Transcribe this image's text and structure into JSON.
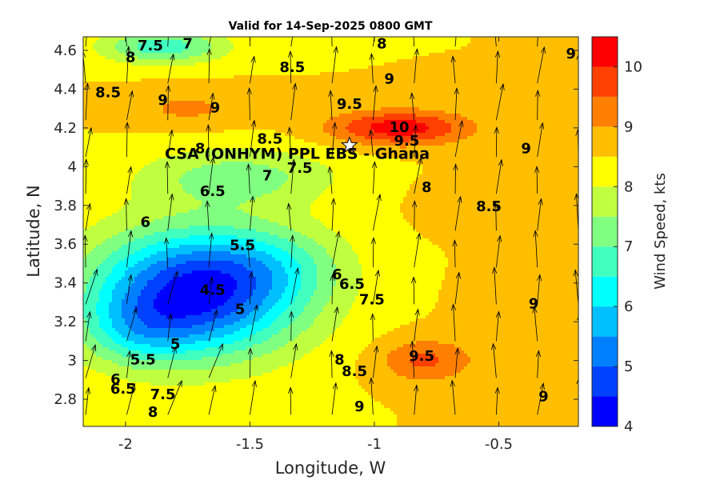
{
  "chart_data": {
    "type": "heatmap",
    "subtype": "filled-contour-with-wind-vectors",
    "title": "Valid for 14-Sep-2025 0800 GMT",
    "xlabel": "Longitude, W",
    "ylabel": "Latitude, N",
    "xlim": [
      -2.17,
      -0.18
    ],
    "ylim": [
      2.66,
      4.67
    ],
    "x_ticks": [
      -2,
      -1.5,
      -1,
      -0.5
    ],
    "x_tick_labels": [
      "-2",
      "-1.5",
      "-1",
      "-0.5"
    ],
    "y_ticks": [
      2.8,
      3,
      3.2,
      3.4,
      3.6,
      3.8,
      4,
      4.2,
      4.4,
      4.6
    ],
    "y_tick_labels": [
      "2.8",
      "3",
      "3.2",
      "3.4",
      "3.6",
      "3.8",
      "4",
      "4.2",
      "4.4",
      "4.6"
    ],
    "colorbar": {
      "label": "Wind Speed, kts",
      "min": 4,
      "max": 10.5,
      "levels": [
        4,
        4.5,
        5,
        5.5,
        6,
        6.5,
        7,
        7.5,
        8,
        8.5,
        9,
        9.5,
        10,
        10.5
      ],
      "ticks": [
        4,
        5,
        6,
        7,
        8,
        9,
        10
      ],
      "tick_labels": [
        "4",
        "5",
        "6",
        "7",
        "8",
        "9",
        "10"
      ],
      "colors": [
        "#0000ff",
        "#0040ff",
        "#0080ff",
        "#00bfff",
        "#00ffff",
        "#40ffbf",
        "#80ff80",
        "#bfff40",
        "#ffff00",
        "#ffbf00",
        "#ff8000",
        "#ff4000",
        "#ff0000"
      ]
    },
    "station": {
      "label": "CSA (ONHYM) PPL EBS  - Ghana",
      "lon": -1.1,
      "lat": 4.11,
      "marker": "star"
    },
    "contour_labels": [
      {
        "text": "7.5",
        "lon": -1.9,
        "lat": 4.62
      },
      {
        "text": "7",
        "lon": -1.75,
        "lat": 4.63
      },
      {
        "text": "8",
        "lon": -1.98,
        "lat": 4.56
      },
      {
        "text": "8",
        "lon": -0.97,
        "lat": 4.63
      },
      {
        "text": "8.5",
        "lon": -1.33,
        "lat": 4.51
      },
      {
        "text": "9",
        "lon": -0.94,
        "lat": 4.45
      },
      {
        "text": "8.5",
        "lon": -2.07,
        "lat": 4.38
      },
      {
        "text": "9",
        "lon": -1.85,
        "lat": 4.34
      },
      {
        "text": "9.5",
        "lon": -1.1,
        "lat": 4.32
      },
      {
        "text": "9",
        "lon": -1.64,
        "lat": 4.3
      },
      {
        "text": "10",
        "lon": -0.9,
        "lat": 4.2
      },
      {
        "text": "9.5",
        "lon": -0.87,
        "lat": 4.13
      },
      {
        "text": "8.5",
        "lon": -1.42,
        "lat": 4.14
      },
      {
        "text": "8",
        "lon": -1.7,
        "lat": 4.09
      },
      {
        "text": "7.5",
        "lon": -1.3,
        "lat": 3.99
      },
      {
        "text": "7",
        "lon": -1.43,
        "lat": 3.95
      },
      {
        "text": "6.5",
        "lon": -1.65,
        "lat": 3.87
      },
      {
        "text": "8",
        "lon": -0.79,
        "lat": 3.89
      },
      {
        "text": "8.5",
        "lon": -0.54,
        "lat": 3.79
      },
      {
        "text": "9",
        "lon": -0.39,
        "lat": 4.09
      },
      {
        "text": "9",
        "lon": -0.21,
        "lat": 4.58
      },
      {
        "text": "6",
        "lon": -1.92,
        "lat": 3.71
      },
      {
        "text": "5.5",
        "lon": -1.53,
        "lat": 3.59
      },
      {
        "text": "4.5",
        "lon": -1.65,
        "lat": 3.36
      },
      {
        "text": "5",
        "lon": -1.54,
        "lat": 3.26
      },
      {
        "text": "5",
        "lon": -1.8,
        "lat": 3.08
      },
      {
        "text": "5.5",
        "lon": -1.93,
        "lat": 3.0
      },
      {
        "text": "6",
        "lon": -1.15,
        "lat": 3.44
      },
      {
        "text": "6.5",
        "lon": -1.09,
        "lat": 3.39
      },
      {
        "text": "7.5",
        "lon": -1.01,
        "lat": 3.31
      },
      {
        "text": "6",
        "lon": -2.04,
        "lat": 2.9
      },
      {
        "text": "6.5",
        "lon": -2.01,
        "lat": 2.85
      },
      {
        "text": "7.5",
        "lon": -1.85,
        "lat": 2.82
      },
      {
        "text": "8",
        "lon": -1.89,
        "lat": 2.73
      },
      {
        "text": "8",
        "lon": -1.14,
        "lat": 3.0
      },
      {
        "text": "8.5",
        "lon": -1.08,
        "lat": 2.94
      },
      {
        "text": "9.5",
        "lon": -0.81,
        "lat": 3.02
      },
      {
        "text": "9",
        "lon": -0.36,
        "lat": 3.29
      },
      {
        "text": "9",
        "lon": -0.32,
        "lat": 2.81
      },
      {
        "text": "9",
        "lon": -1.06,
        "lat": 2.76
      }
    ]
  }
}
